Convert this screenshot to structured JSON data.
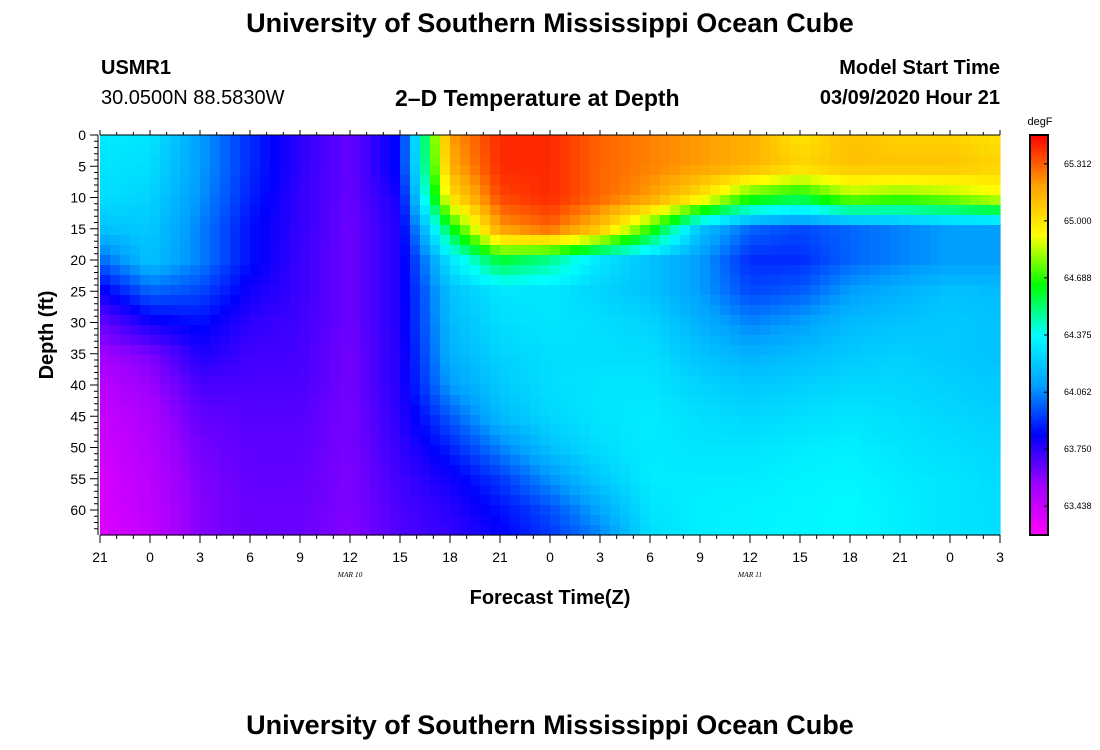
{
  "header": {
    "title": "University of Southern Mississippi Ocean Cube",
    "station": "USMR1",
    "coords": "30.0500N 88.5830W",
    "plot_title": "2–D Temperature at Depth",
    "model_label": "Model Start Time",
    "model_time": "03/09/2020 Hour 21"
  },
  "footer": {
    "title": "University of Southern Mississippi Ocean Cube"
  },
  "chart_data": {
    "type": "heatmap",
    "title": "2–D Temperature at Depth",
    "xlabel": "Forecast Time(Z)",
    "ylabel": "Depth (ft)",
    "x_tick_labels": [
      "21",
      "0",
      "3",
      "6",
      "9",
      "12",
      "15",
      "18",
      "21",
      "0",
      "3",
      "6",
      "9",
      "12",
      "15",
      "18",
      "21",
      "0",
      "3"
    ],
    "x_date_labels": [
      {
        "label": "MAR  10",
        "at_tick": 5
      },
      {
        "label": "MAR  11",
        "at_tick": 13
      }
    ],
    "y_ticks": [
      0,
      5,
      10,
      15,
      20,
      25,
      30,
      35,
      40,
      45,
      50,
      55,
      60
    ],
    "ylim": [
      0,
      64
    ],
    "y_inverted": true,
    "colorbar": {
      "unit": "degF",
      "range": [
        63.28,
        65.47
      ],
      "tick_labels": [
        "65.312",
        "65.000",
        "64.688",
        "64.375",
        "64.062",
        "63.750",
        "63.438"
      ],
      "colors": [
        "#ff00ff",
        "#a000ff",
        "#0000ff",
        "#00a0ff",
        "#00ffff",
        "#00ff00",
        "#ffff00",
        "#ffa000",
        "#ff0000"
      ]
    },
    "x_hours": [
      0,
      3,
      6,
      9,
      12,
      15,
      18,
      21,
      24,
      27,
      30,
      33,
      36,
      39,
      42,
      45,
      48,
      51,
      54
    ],
    "depths": [
      0,
      5,
      10,
      15,
      20,
      25,
      30,
      35,
      40,
      45,
      50,
      55,
      60,
      64
    ],
    "temperature_degF": [
      [
        64.32,
        64.3,
        64.1,
        63.9,
        63.75,
        63.65,
        63.85,
        65.2,
        65.4,
        65.4,
        65.3,
        65.25,
        65.2,
        65.15,
        65.0,
        65.1,
        65.05,
        65.05,
        65.0
      ],
      [
        64.3,
        64.28,
        64.1,
        63.9,
        63.75,
        63.65,
        63.85,
        65.15,
        65.4,
        65.4,
        65.3,
        65.25,
        65.2,
        65.15,
        65.05,
        65.1,
        65.1,
        65.1,
        65.05
      ],
      [
        64.28,
        64.25,
        64.08,
        63.88,
        63.74,
        63.65,
        63.8,
        65.0,
        65.35,
        65.4,
        65.3,
        65.2,
        65.0,
        64.7,
        64.6,
        64.8,
        64.75,
        64.8,
        64.9
      ],
      [
        64.2,
        64.22,
        64.05,
        63.85,
        63.74,
        63.64,
        63.78,
        64.6,
        65.2,
        65.3,
        65.1,
        64.7,
        64.2,
        64.0,
        63.95,
        64.0,
        64.05,
        64.1,
        64.1
      ],
      [
        64.0,
        64.2,
        64.05,
        63.85,
        63.73,
        63.64,
        63.78,
        64.3,
        64.6,
        64.5,
        64.3,
        64.2,
        64.1,
        63.9,
        63.9,
        64.0,
        64.05,
        64.1,
        64.1
      ],
      [
        63.8,
        64.0,
        63.95,
        63.8,
        63.73,
        63.64,
        63.78,
        64.2,
        64.3,
        64.3,
        64.25,
        64.2,
        64.1,
        63.95,
        63.98,
        64.1,
        64.15,
        64.2,
        64.18
      ],
      [
        63.65,
        63.8,
        63.85,
        63.75,
        63.72,
        63.64,
        63.78,
        64.18,
        64.28,
        64.3,
        64.28,
        64.25,
        64.15,
        64.05,
        64.1,
        64.18,
        64.2,
        64.22,
        64.2
      ],
      [
        63.55,
        63.62,
        63.78,
        63.72,
        63.71,
        63.63,
        63.77,
        64.15,
        64.25,
        64.28,
        64.28,
        64.28,
        64.2,
        64.15,
        64.18,
        64.22,
        64.24,
        64.22,
        64.2
      ],
      [
        63.48,
        63.56,
        63.7,
        63.7,
        63.7,
        63.63,
        63.77,
        64.1,
        64.22,
        64.28,
        64.3,
        64.3,
        64.25,
        64.22,
        64.24,
        64.26,
        64.26,
        64.24,
        64.22
      ],
      [
        63.44,
        63.52,
        63.66,
        63.68,
        63.68,
        63.62,
        63.76,
        63.98,
        64.18,
        64.26,
        64.3,
        64.32,
        64.28,
        64.26,
        64.28,
        64.3,
        64.28,
        64.26,
        64.24
      ],
      [
        63.42,
        63.5,
        63.63,
        63.67,
        63.67,
        63.62,
        63.74,
        63.88,
        64.05,
        64.2,
        64.28,
        64.32,
        64.3,
        64.3,
        64.32,
        64.33,
        64.3,
        64.28,
        64.26
      ],
      [
        63.4,
        63.48,
        63.61,
        63.66,
        63.66,
        63.61,
        63.72,
        63.8,
        63.92,
        64.08,
        64.22,
        64.32,
        64.32,
        64.32,
        64.34,
        64.35,
        64.32,
        64.3,
        64.27
      ],
      [
        63.39,
        63.47,
        63.6,
        63.65,
        63.65,
        63.61,
        63.7,
        63.76,
        63.85,
        63.96,
        64.12,
        64.3,
        64.33,
        64.34,
        64.35,
        64.36,
        64.33,
        64.3,
        64.28
      ],
      [
        63.38,
        63.46,
        63.6,
        63.65,
        63.65,
        63.6,
        63.69,
        63.74,
        63.82,
        63.92,
        64.05,
        64.28,
        64.33,
        64.34,
        64.35,
        64.36,
        64.33,
        64.3,
        64.28
      ]
    ]
  }
}
